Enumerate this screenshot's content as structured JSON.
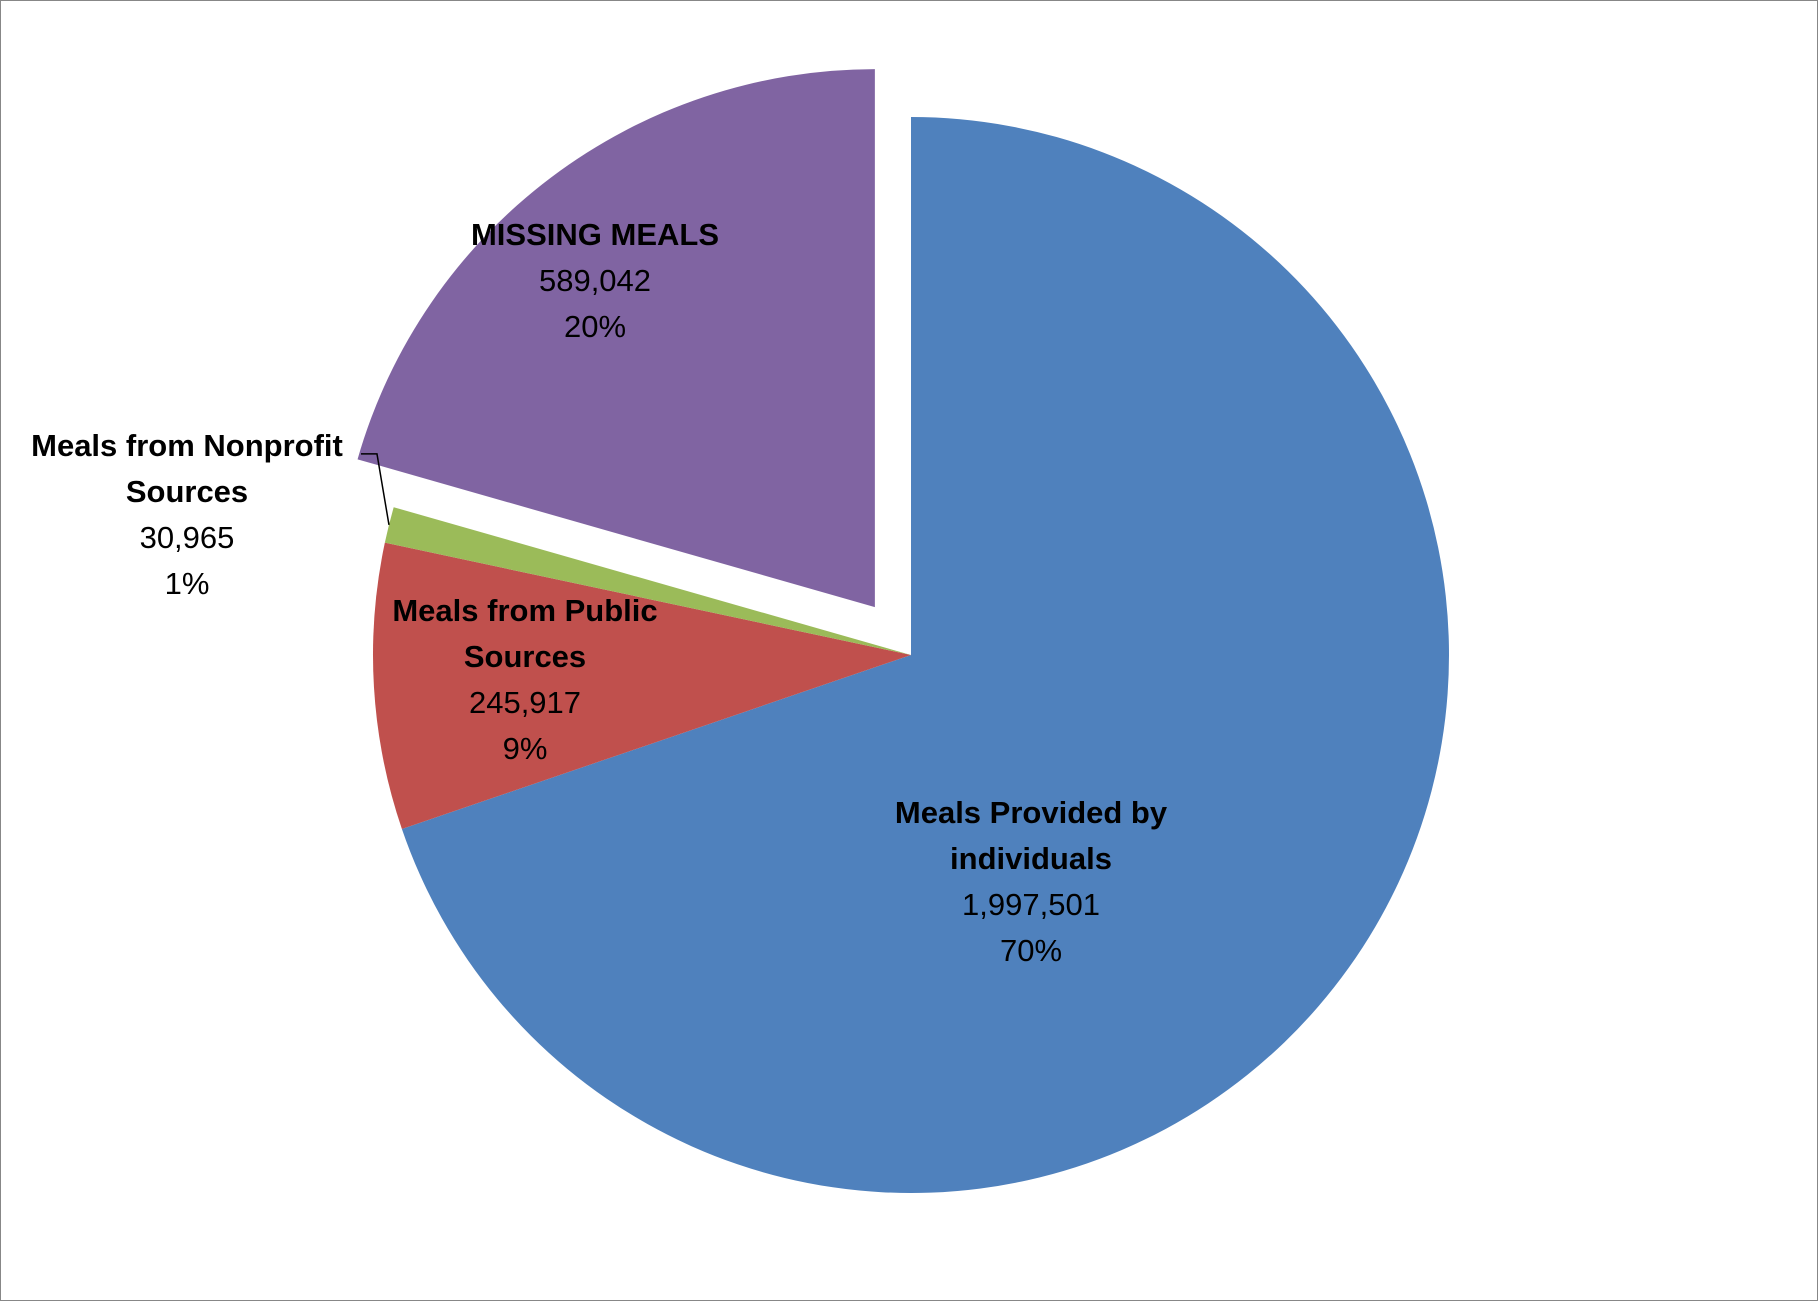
{
  "chart_data": {
    "type": "pie",
    "start_angle_deg": 0,
    "direction": "clockwise",
    "slices": [
      {
        "label_lines": [
          "Meals Provided by",
          "individuals"
        ],
        "value": 1997501,
        "value_text": "1,997,501",
        "percent_text": "70%",
        "color": "#4F81BD",
        "exploded": false
      },
      {
        "label_lines": [
          "Meals from Public",
          "Sources"
        ],
        "value": 245917,
        "value_text": "245,917",
        "percent_text": "9%",
        "color": "#C0504D",
        "exploded": false
      },
      {
        "label_lines": [
          "Meals from Nonprofit",
          "Sources"
        ],
        "value": 30965,
        "value_text": "30,965",
        "percent_text": "1%",
        "color": "#9BBB59",
        "exploded": false
      },
      {
        "label_lines": [
          "MISSING MEALS"
        ],
        "value": 589042,
        "value_text": "589,042",
        "percent_text": "20%",
        "color": "#8064A2",
        "exploded": true
      }
    ]
  }
}
